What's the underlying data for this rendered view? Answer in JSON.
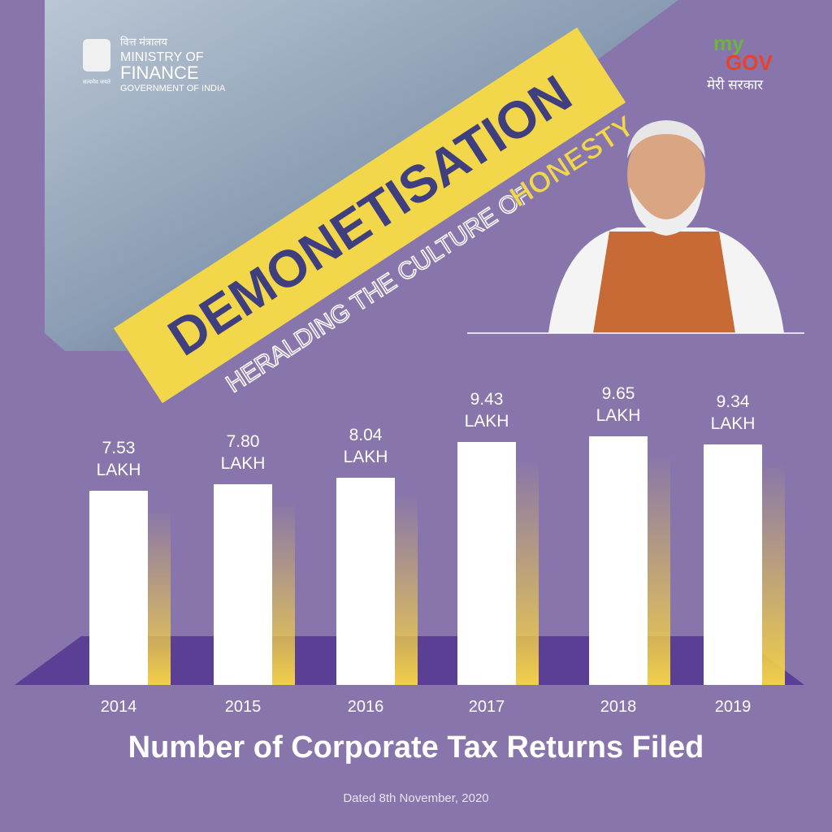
{
  "header": {
    "ministry_hindi": "वित्त मंत्रालय",
    "ministry_line1": "MINISTRY OF",
    "ministry_line2": "FINANCE",
    "ministry_line3": "GOVERNMENT OF INDIA",
    "emblem_motto": "सत्यमेव जयते",
    "mygov_my": "my",
    "mygov_gov": "GOV",
    "mygov_hindi": "मेरी सरकार"
  },
  "banner": {
    "headline": "DEMONETISATION",
    "tagline": "HERALDING THE CULTURE OF",
    "tagline_emphasis": "HONESTY"
  },
  "chart_data": {
    "type": "bar",
    "title": "Number of Corporate Tax Returns Filed",
    "categories": [
      "2014",
      "2015",
      "2016",
      "2017",
      "2018",
      "2019"
    ],
    "values": [
      7.53,
      7.8,
      8.04,
      9.43,
      9.65,
      9.34
    ],
    "value_labels": [
      "7.53 LAKH",
      "7.80 LAKH",
      "8.04 LAKH",
      "9.43 LAKH",
      "9.65 LAKH",
      "9.34 LAKH"
    ],
    "color": "#ffffff"
  },
  "footer": {
    "date": "Dated 8th November, 2020"
  }
}
